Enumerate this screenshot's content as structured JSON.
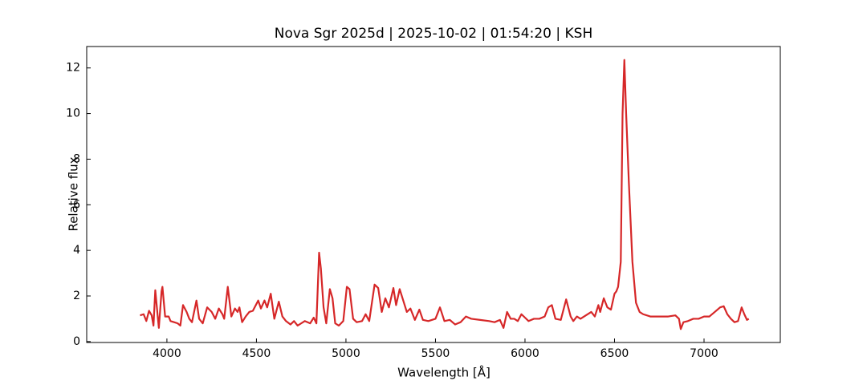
{
  "chart_data": {
    "type": "line",
    "title": "Nova Sgr 2025d | 2025-10-02 | 01:54:20 | KSH",
    "x_label": "Wavelength [Å]",
    "y_label": "Relative flux",
    "color": "#d62728",
    "x": [
      3850,
      3870,
      3885,
      3900,
      3915,
      3925,
      3935,
      3950,
      3955,
      3970,
      3975,
      3990,
      4010,
      4020,
      4040,
      4060,
      4075,
      4090,
      4110,
      4125,
      4140,
      4165,
      4180,
      4200,
      4225,
      4250,
      4270,
      4290,
      4310,
      4320,
      4340,
      4360,
      4380,
      4395,
      4405,
      4420,
      4440,
      4460,
      4480,
      4510,
      4525,
      4545,
      4560,
      4580,
      4600,
      4625,
      4645,
      4665,
      4690,
      4710,
      4730,
      4750,
      4770,
      4800,
      4820,
      4835,
      4850,
      4860,
      4875,
      4890,
      4910,
      4925,
      4940,
      4960,
      4985,
      5005,
      5020,
      5040,
      5060,
      5090,
      5110,
      5130,
      5160,
      5180,
      5200,
      5220,
      5240,
      5265,
      5280,
      5300,
      5320,
      5340,
      5360,
      5385,
      5410,
      5430,
      5460,
      5500,
      5525,
      5550,
      5580,
      5610,
      5640,
      5670,
      5700,
      5750,
      5800,
      5830,
      5860,
      5880,
      5900,
      5920,
      5940,
      5960,
      5980,
      6000,
      6020,
      6050,
      6080,
      6110,
      6130,
      6150,
      6170,
      6200,
      6230,
      6255,
      6270,
      6290,
      6310,
      6340,
      6370,
      6390,
      6410,
      6420,
      6440,
      6460,
      6480,
      6500,
      6510,
      6520,
      6535,
      6545,
      6555,
      6565,
      6580,
      6600,
      6620,
      6640,
      6660,
      6700,
      6750,
      6800,
      6840,
      6860,
      6870,
      6885,
      6910,
      6940,
      6970,
      7000,
      7030,
      7060,
      7090,
      7110,
      7130,
      7150,
      7170,
      7190,
      7210,
      7225,
      7240,
      7250
    ],
    "values": [
      1.15,
      1.2,
      0.9,
      1.35,
      1.15,
      0.7,
      2.25,
      1.0,
      0.6,
      2.2,
      2.4,
      1.1,
      1.1,
      0.9,
      0.85,
      0.8,
      0.7,
      1.6,
      1.3,
      1.0,
      0.85,
      1.8,
      1.0,
      0.8,
      1.5,
      1.3,
      1.0,
      1.45,
      1.2,
      1.0,
      2.4,
      1.1,
      1.45,
      1.3,
      1.5,
      0.85,
      1.1,
      1.3,
      1.35,
      1.8,
      1.45,
      1.8,
      1.5,
      2.1,
      1.0,
      1.75,
      1.1,
      0.9,
      0.75,
      0.9,
      0.7,
      0.8,
      0.9,
      0.8,
      1.05,
      0.8,
      3.9,
      3.2,
      1.5,
      0.8,
      2.3,
      1.9,
      0.8,
      0.7,
      0.9,
      2.4,
      2.3,
      1.0,
      0.85,
      0.9,
      1.2,
      0.9,
      2.5,
      2.35,
      1.3,
      1.9,
      1.5,
      2.35,
      1.6,
      2.3,
      1.8,
      1.3,
      1.45,
      0.95,
      1.4,
      0.95,
      0.9,
      1.0,
      1.5,
      0.9,
      0.95,
      0.75,
      0.85,
      1.1,
      1.0,
      0.95,
      0.9,
      0.85,
      0.95,
      0.6,
      1.3,
      1.0,
      1.0,
      0.9,
      1.2,
      1.05,
      0.9,
      1.0,
      1.0,
      1.1,
      1.5,
      1.6,
      1.0,
      0.95,
      1.85,
      1.1,
      0.9,
      1.1,
      1.0,
      1.15,
      1.3,
      1.1,
      1.6,
      1.3,
      1.9,
      1.5,
      1.4,
      2.1,
      2.2,
      2.4,
      3.5,
      10,
      12.35,
      10,
      7,
      3.5,
      1.7,
      1.3,
      1.2,
      1.1,
      1.1,
      1.1,
      1.15,
      1.0,
      0.55,
      0.85,
      0.9,
      1.0,
      1.0,
      1.1,
      1.1,
      1.3,
      1.5,
      1.55,
      1.2,
      1.0,
      0.85,
      0.9,
      1.5,
      1.2,
      0.95,
      1.0
    ],
    "xlim": [
      3552,
      7426
    ],
    "ylim": [
      -0.04,
      12.94
    ],
    "xticks": [
      4000,
      4500,
      5000,
      5500,
      6000,
      6500,
      7000
    ],
    "yticks": [
      0,
      2,
      4,
      6,
      8,
      10,
      12
    ]
  }
}
